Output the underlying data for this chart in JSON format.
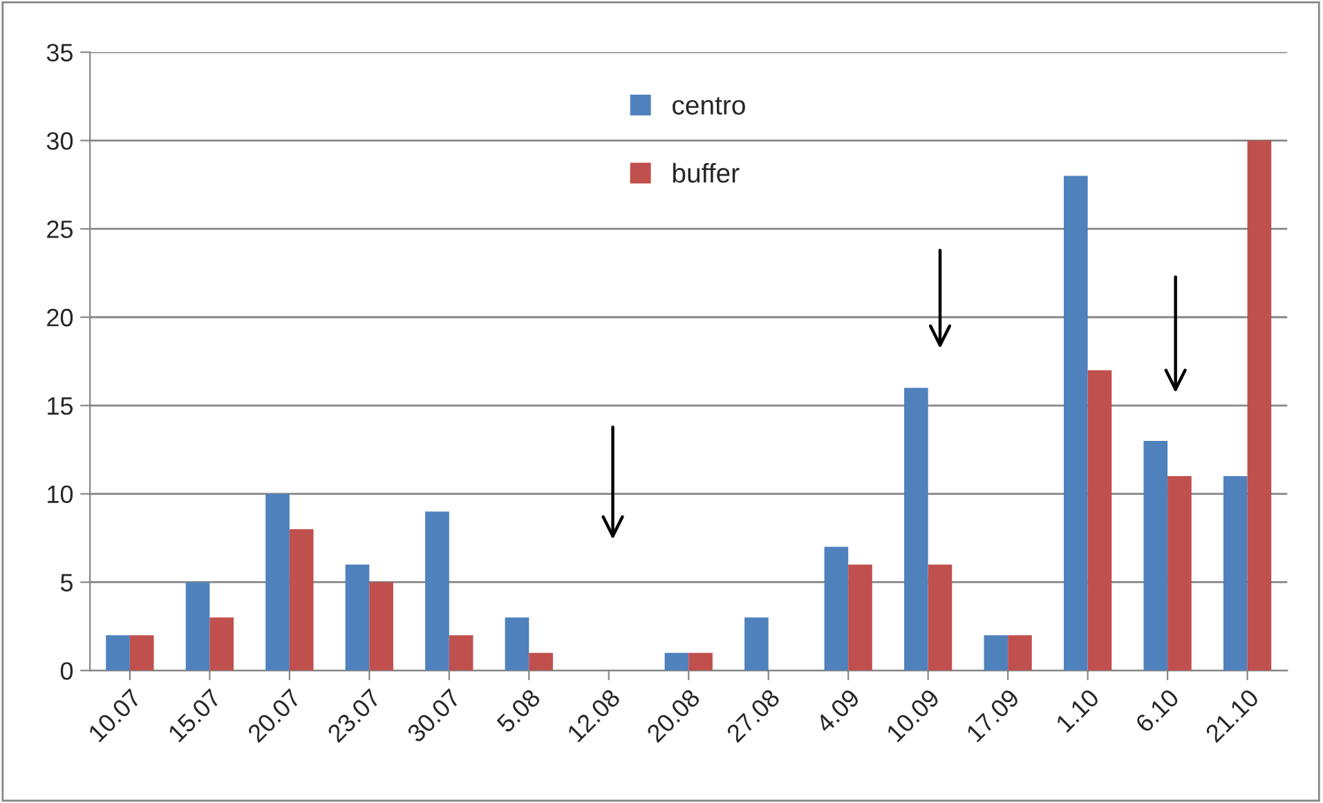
{
  "chart_data": {
    "type": "bar",
    "categories": [
      "10.07",
      "15.07",
      "20.07",
      "23.07",
      "30.07",
      "5.08",
      "12.08",
      "20.08",
      "27.08",
      "4.09",
      "10.09",
      "17.09",
      "1.10",
      "6.10",
      "21.10"
    ],
    "series": [
      {
        "name": "centro",
        "color": "#4f81bd",
        "values": [
          2,
          5,
          10,
          6,
          9,
          3,
          0,
          1,
          3,
          7,
          16,
          2,
          28,
          13,
          11
        ]
      },
      {
        "name": "buffer",
        "color": "#c0504d",
        "values": [
          2,
          3,
          8,
          5,
          2,
          1,
          0,
          1,
          0,
          6,
          6,
          2,
          17,
          11,
          30
        ]
      }
    ],
    "ylim": [
      0,
      35
    ],
    "yticks": [
      0,
      5,
      10,
      15,
      20,
      25,
      30,
      35
    ],
    "grid": "y",
    "legend": "top"
  }
}
